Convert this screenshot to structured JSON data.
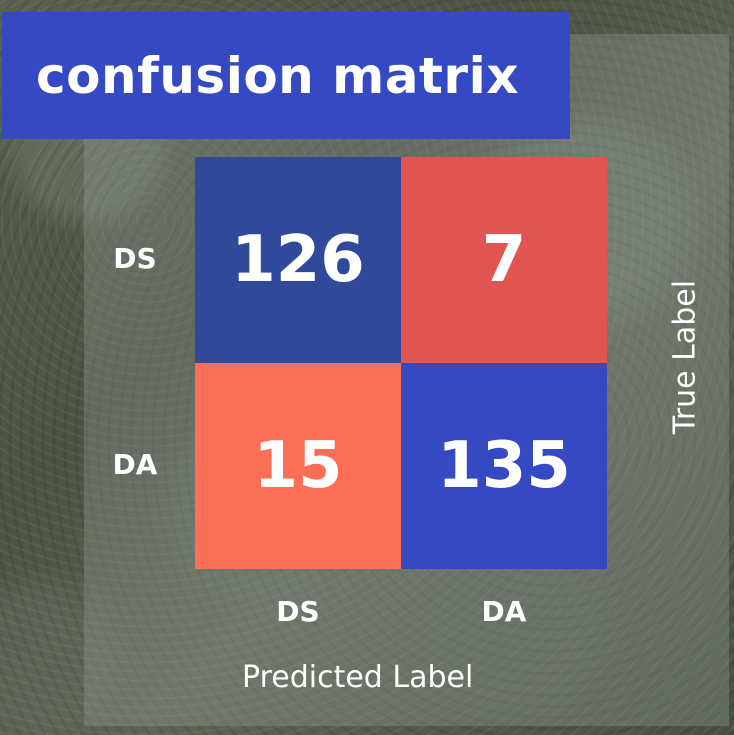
{
  "chart_data": {
    "type": "heatmap",
    "title": "confusion matrix",
    "xlabel": "Predicted Label",
    "ylabel": "True Label",
    "x_categories": [
      "DS",
      "DA"
    ],
    "y_categories": [
      "DS",
      "DA"
    ],
    "values": [
      [
        126,
        7
      ],
      [
        15,
        135
      ]
    ],
    "cell_colors": [
      [
        "#30499b",
        "#e05452"
      ],
      [
        "#fd6e57",
        "#3549c2"
      ]
    ]
  }
}
